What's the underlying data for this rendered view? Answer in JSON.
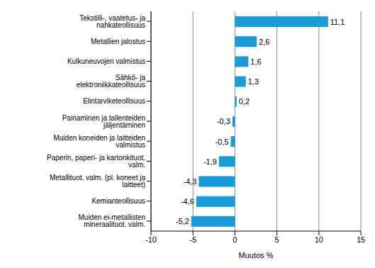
{
  "chart_data": {
    "type": "bar",
    "orientation": "horizontal",
    "x_label": "Muutos %",
    "categories": [
      "Tekstiili-, vaatetus- ja nahkateollisuus",
      "Metallien jalostus",
      "Kulkuneuvojen valmistus",
      "Sähkö- ja elektroniikkateollisuus",
      "Elintarviketeollisuus",
      "Painaminen ja tallenteiden jäljentäminen",
      "Muiden koneiden ja laitteiden valmistus",
      "Paperin, paperi- ja kartonkituot. valm.",
      "Metallituot. valm. (pl. koneet ja laitteet)",
      "Kemianteollisuus",
      "Muiden ei-metallisten mineraalituot. valm."
    ],
    "values": [
      11.1,
      2.6,
      1.6,
      1.3,
      0.2,
      -0.3,
      -0.5,
      -1.9,
      -4.3,
      -4.6,
      -5.2
    ],
    "value_labels": [
      "11,1",
      "2,6",
      "1,6",
      "1,3",
      "0,2",
      "-0,3",
      "-0,5",
      "-1,9",
      "-4,3",
      "-4,6",
      "-5,2"
    ],
    "color": "#1a9ad7",
    "xlim": [
      -10,
      15
    ],
    "xticks": [
      -10,
      -5,
      0,
      5,
      10,
      15
    ],
    "grid": true,
    "data_labels": true
  }
}
